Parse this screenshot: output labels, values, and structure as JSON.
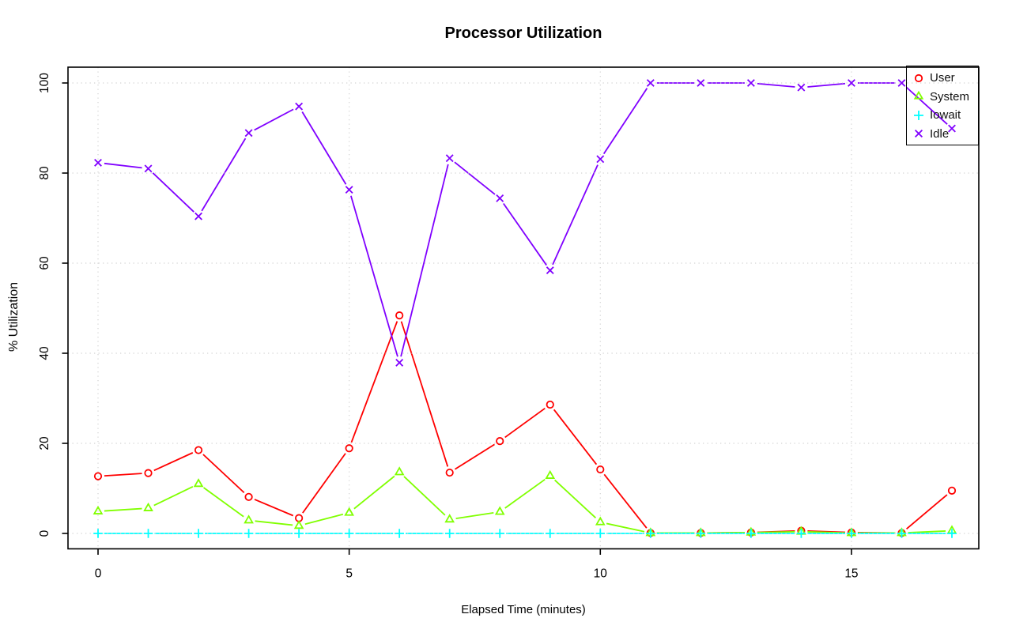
{
  "chart_data": {
    "type": "line",
    "title": "Processor Utilization",
    "xlabel": "Elapsed Time (minutes)",
    "ylabel": "% Utilization",
    "x": [
      0,
      1,
      2,
      3,
      4,
      5,
      6,
      7,
      8,
      9,
      10,
      11,
      12,
      13,
      14,
      15,
      16,
      17
    ],
    "xticks": [
      0,
      5,
      10,
      15
    ],
    "yticks": [
      0,
      20,
      40,
      60,
      80,
      100
    ],
    "xlim": [
      0,
      17
    ],
    "ylim": [
      0,
      100
    ],
    "grid": true,
    "grid_style": "dotted",
    "grid_color": "#D3D3D3",
    "legend_position": "top-right",
    "line_style": "points-and-lines",
    "series": [
      {
        "name": "User",
        "color": "#FF0000",
        "marker": "circle",
        "values": [
          12.7,
          13.4,
          18.5,
          8.1,
          3.4,
          18.9,
          48.4,
          13.5,
          20.5,
          28.6,
          14.2,
          0.1,
          0.1,
          0.2,
          0.6,
          0.2,
          0.1,
          9.5
        ]
      },
      {
        "name": "System",
        "color": "#80FF00",
        "marker": "triangle",
        "values": [
          4.9,
          5.6,
          11.0,
          2.9,
          1.7,
          4.6,
          13.6,
          3.1,
          4.8,
          12.8,
          2.5,
          0.1,
          0.1,
          0.2,
          0.4,
          0.1,
          0.1,
          0.6
        ]
      },
      {
        "name": "Iowait",
        "color": "#00FFFF",
        "marker": "plus",
        "values": [
          0,
          0,
          0,
          0,
          0,
          0,
          0,
          0,
          0,
          0,
          0,
          0,
          0,
          0,
          0,
          0,
          0,
          0
        ]
      },
      {
        "name": "Idle",
        "color": "#8000FF",
        "marker": "x",
        "values": [
          82.3,
          81.0,
          70.4,
          88.9,
          94.8,
          76.3,
          37.9,
          83.3,
          74.4,
          58.4,
          83.1,
          100,
          100,
          100,
          99.0,
          100,
          100,
          89.9
        ]
      }
    ]
  }
}
